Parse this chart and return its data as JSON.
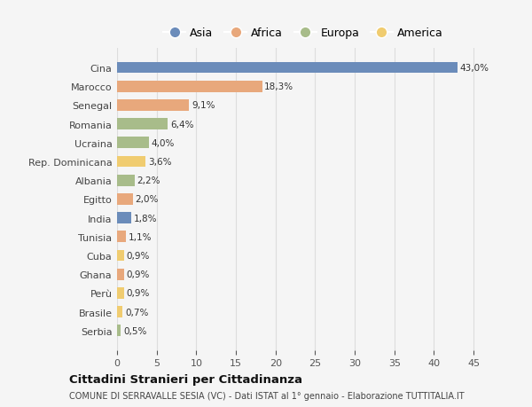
{
  "countries": [
    "Cina",
    "Marocco",
    "Senegal",
    "Romania",
    "Ucraina",
    "Rep. Dominicana",
    "Albania",
    "Egitto",
    "India",
    "Tunisia",
    "Cuba",
    "Ghana",
    "Perù",
    "Brasile",
    "Serbia"
  ],
  "values": [
    43.0,
    18.3,
    9.1,
    6.4,
    4.0,
    3.6,
    2.2,
    2.0,
    1.8,
    1.1,
    0.9,
    0.9,
    0.9,
    0.7,
    0.5
  ],
  "labels": [
    "43,0%",
    "18,3%",
    "9,1%",
    "6,4%",
    "4,0%",
    "3,6%",
    "2,2%",
    "2,0%",
    "1,8%",
    "1,1%",
    "0,9%",
    "0,9%",
    "0,9%",
    "0,7%",
    "0,5%"
  ],
  "continents": [
    "Asia",
    "Africa",
    "Africa",
    "Europa",
    "Europa",
    "America",
    "Europa",
    "Africa",
    "Asia",
    "Africa",
    "America",
    "Africa",
    "America",
    "America",
    "Europa"
  ],
  "continent_colors": {
    "Asia": "#6b8cba",
    "Africa": "#e8a87c",
    "Europa": "#a8bc8a",
    "America": "#f0cc70"
  },
  "legend_order": [
    "Asia",
    "Africa",
    "Europa",
    "America"
  ],
  "xlim": [
    0,
    47
  ],
  "xticks": [
    0,
    5,
    10,
    15,
    20,
    25,
    30,
    35,
    40,
    45
  ],
  "title": "Cittadini Stranieri per Cittadinanza",
  "subtitle": "COMUNE DI SERRAVALLE SESIA (VC) - Dati ISTAT al 1° gennaio - Elaborazione TUTTITALIA.IT",
  "bg_color": "#f5f5f5",
  "grid_color": "#dddddd",
  "bar_height": 0.6
}
